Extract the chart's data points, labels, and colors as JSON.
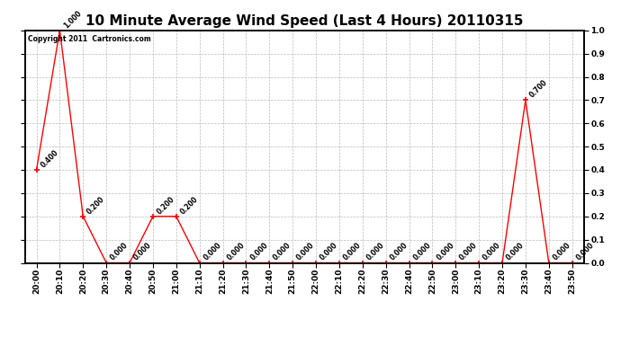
{
  "title": "10 Minute Average Wind Speed (Last 4 Hours) 20110315",
  "watermark": "Copyright 2011  Cartronics.com",
  "x_labels": [
    "20:00",
    "20:10",
    "20:20",
    "20:30",
    "20:40",
    "20:50",
    "21:00",
    "21:10",
    "21:20",
    "21:30",
    "21:40",
    "21:50",
    "22:00",
    "22:10",
    "22:20",
    "22:30",
    "22:40",
    "22:50",
    "23:00",
    "23:10",
    "23:20",
    "23:30",
    "23:40",
    "23:50"
  ],
  "y_values": [
    0.4,
    1.0,
    0.2,
    0.0,
    0.0,
    0.2,
    0.2,
    0.0,
    0.0,
    0.0,
    0.0,
    0.0,
    0.0,
    0.0,
    0.0,
    0.0,
    0.0,
    0.0,
    0.0,
    0.0,
    0.0,
    0.7,
    0.0,
    0.0
  ],
  "line_color": "#FF0000",
  "marker_color": "#FF0000",
  "bg_color": "#FFFFFF",
  "plot_bg_color": "#FFFFFF",
  "grid_color": "#BBBBBB",
  "y_min": 0.0,
  "y_max": 1.0,
  "y_ticks": [
    0.0,
    0.1,
    0.2,
    0.3,
    0.4,
    0.5,
    0.6,
    0.7,
    0.8,
    0.9,
    1.0
  ],
  "title_fontsize": 11,
  "tick_fontsize": 6.5,
  "annotation_fontsize": 5.5
}
